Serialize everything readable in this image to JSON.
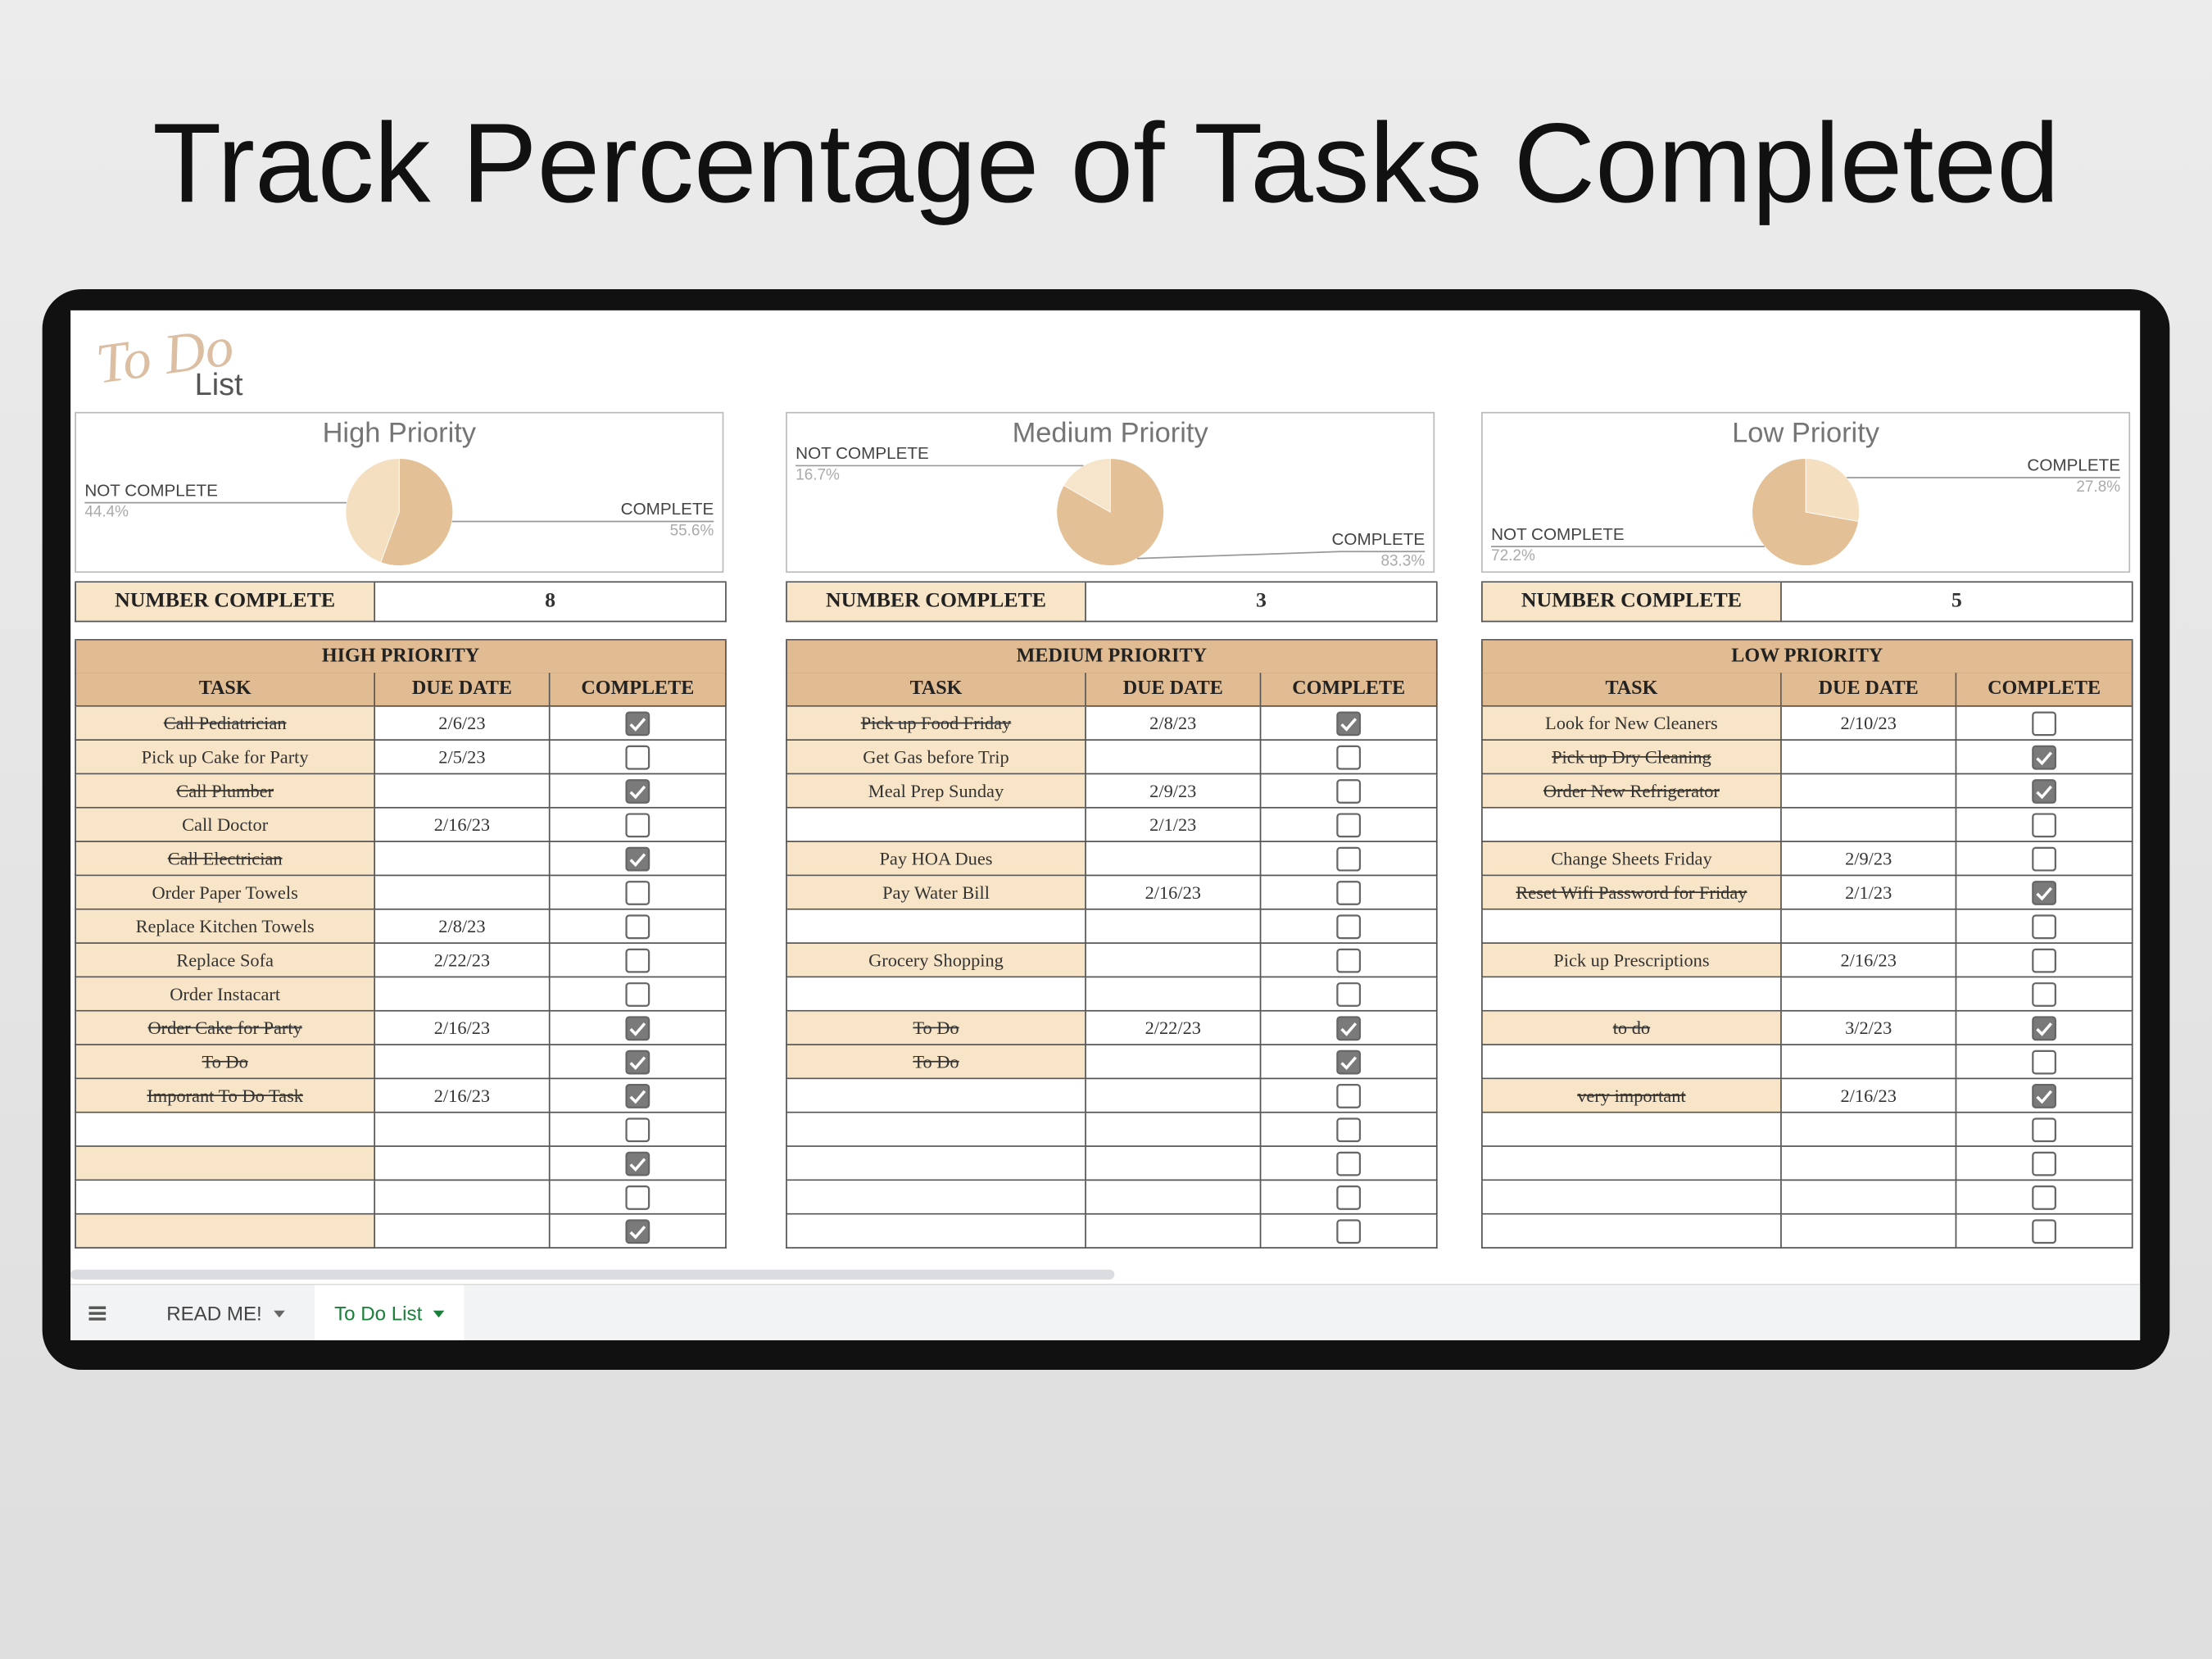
{
  "title": "Track Percentage of Tasks Completed",
  "logo": {
    "script": "To Do",
    "text": "List"
  },
  "chart_data": [
    {
      "type": "pie",
      "title": "High Priority",
      "categories": [
        "COMPLETE",
        "NOT COMPLETE"
      ],
      "values": [
        55.6,
        44.4
      ],
      "value_labels": [
        "55.6%",
        "44.4%"
      ],
      "colors": [
        "#e3c095",
        "#f4dfc0"
      ]
    },
    {
      "type": "pie",
      "title": "Medium Priority",
      "categories": [
        "COMPLETE",
        "NOT COMPLETE"
      ],
      "values": [
        83.3,
        16.7
      ],
      "value_labels": [
        "83.3%",
        "16.7%"
      ],
      "colors": [
        "#e3c095",
        "#f6e5ca"
      ]
    },
    {
      "type": "pie",
      "title": "Low Priority",
      "categories": [
        "COMPLETE",
        "NOT COMPLETE"
      ],
      "values": [
        27.8,
        72.2
      ],
      "value_labels": [
        "27.8%",
        "72.2%"
      ],
      "colors": [
        "#f4dfc0",
        "#e3c095"
      ]
    }
  ],
  "panels": [
    {
      "summary": {
        "label": "NUMBER COMPLETE",
        "value": 8
      },
      "table": {
        "title": "HIGH PRIORITY",
        "columns": [
          "TASK",
          "DUE DATE",
          "COMPLETE"
        ],
        "rows": [
          [
            "Call Pediatrician",
            "2/6/23",
            true
          ],
          [
            "Pick up Cake for Party",
            "2/5/23",
            false
          ],
          [
            "Call Plumber",
            null,
            true
          ],
          [
            "Call Doctor",
            "2/16/23",
            false
          ],
          [
            "Call Electrician",
            null,
            true
          ],
          [
            "Order Paper Towels",
            null,
            false
          ],
          [
            "Replace Kitchen Towels",
            "2/8/23",
            false
          ],
          [
            "Replace Sofa",
            "2/22/23",
            false
          ],
          [
            "Order Instacart",
            null,
            false
          ],
          [
            "Order Cake for Party",
            "2/16/23",
            true
          ],
          [
            "To Do",
            null,
            true
          ],
          [
            "Imporant To Do Task",
            "2/16/23",
            true
          ],
          [
            null,
            null,
            false
          ],
          [
            null,
            null,
            true
          ],
          [
            null,
            null,
            false
          ],
          [
            null,
            null,
            true
          ]
        ]
      }
    },
    {
      "summary": {
        "label": "NUMBER COMPLETE",
        "value": 3
      },
      "table": {
        "title": "MEDIUM PRIORITY",
        "columns": [
          "TASK",
          "DUE DATE",
          "COMPLETE"
        ],
        "rows": [
          [
            "Pick up Food Friday",
            "2/8/23",
            true
          ],
          [
            "Get Gas before Trip",
            null,
            false
          ],
          [
            "Meal Prep Sunday",
            "2/9/23",
            false
          ],
          [
            null,
            "2/1/23",
            false
          ],
          [
            "Pay HOA Dues",
            null,
            false
          ],
          [
            "Pay Water Bill",
            "2/16/23",
            false
          ],
          [
            null,
            null,
            false
          ],
          [
            "Grocery Shopping",
            null,
            false
          ],
          [
            null,
            null,
            false
          ],
          [
            "To Do",
            "2/22/23",
            true
          ],
          [
            "To Do",
            null,
            true
          ],
          [
            null,
            null,
            false
          ],
          [
            null,
            null,
            false
          ],
          [
            null,
            null,
            false
          ],
          [
            null,
            null,
            false
          ],
          [
            null,
            null,
            false
          ]
        ]
      }
    },
    {
      "summary": {
        "label": "NUMBER COMPLETE",
        "value": 5
      },
      "table": {
        "title": "LOW PRIORITY",
        "columns": [
          "TASK",
          "DUE DATE",
          "COMPLETE"
        ],
        "rows": [
          [
            "Look for New Cleaners",
            "2/10/23",
            false
          ],
          [
            "Pick up Dry Cleaning",
            null,
            true
          ],
          [
            "Order New Refrigerator",
            null,
            true
          ],
          [
            null,
            null,
            false
          ],
          [
            "Change Sheets Friday",
            "2/9/23",
            false
          ],
          [
            "Reset Wifi Password for Friday",
            "2/1/23",
            true
          ],
          [
            null,
            null,
            false
          ],
          [
            "Pick up Prescriptions",
            "2/16/23",
            false
          ],
          [
            null,
            null,
            false
          ],
          [
            "to do",
            "3/2/23",
            true
          ],
          [
            null,
            null,
            false
          ],
          [
            "very important",
            "2/16/23",
            true
          ],
          [
            null,
            null,
            false
          ],
          [
            null,
            null,
            false
          ],
          [
            null,
            null,
            false
          ],
          [
            null,
            null,
            false
          ]
        ]
      }
    }
  ],
  "tabs": [
    "READ ME!",
    "To Do List"
  ],
  "active_tab": 1
}
